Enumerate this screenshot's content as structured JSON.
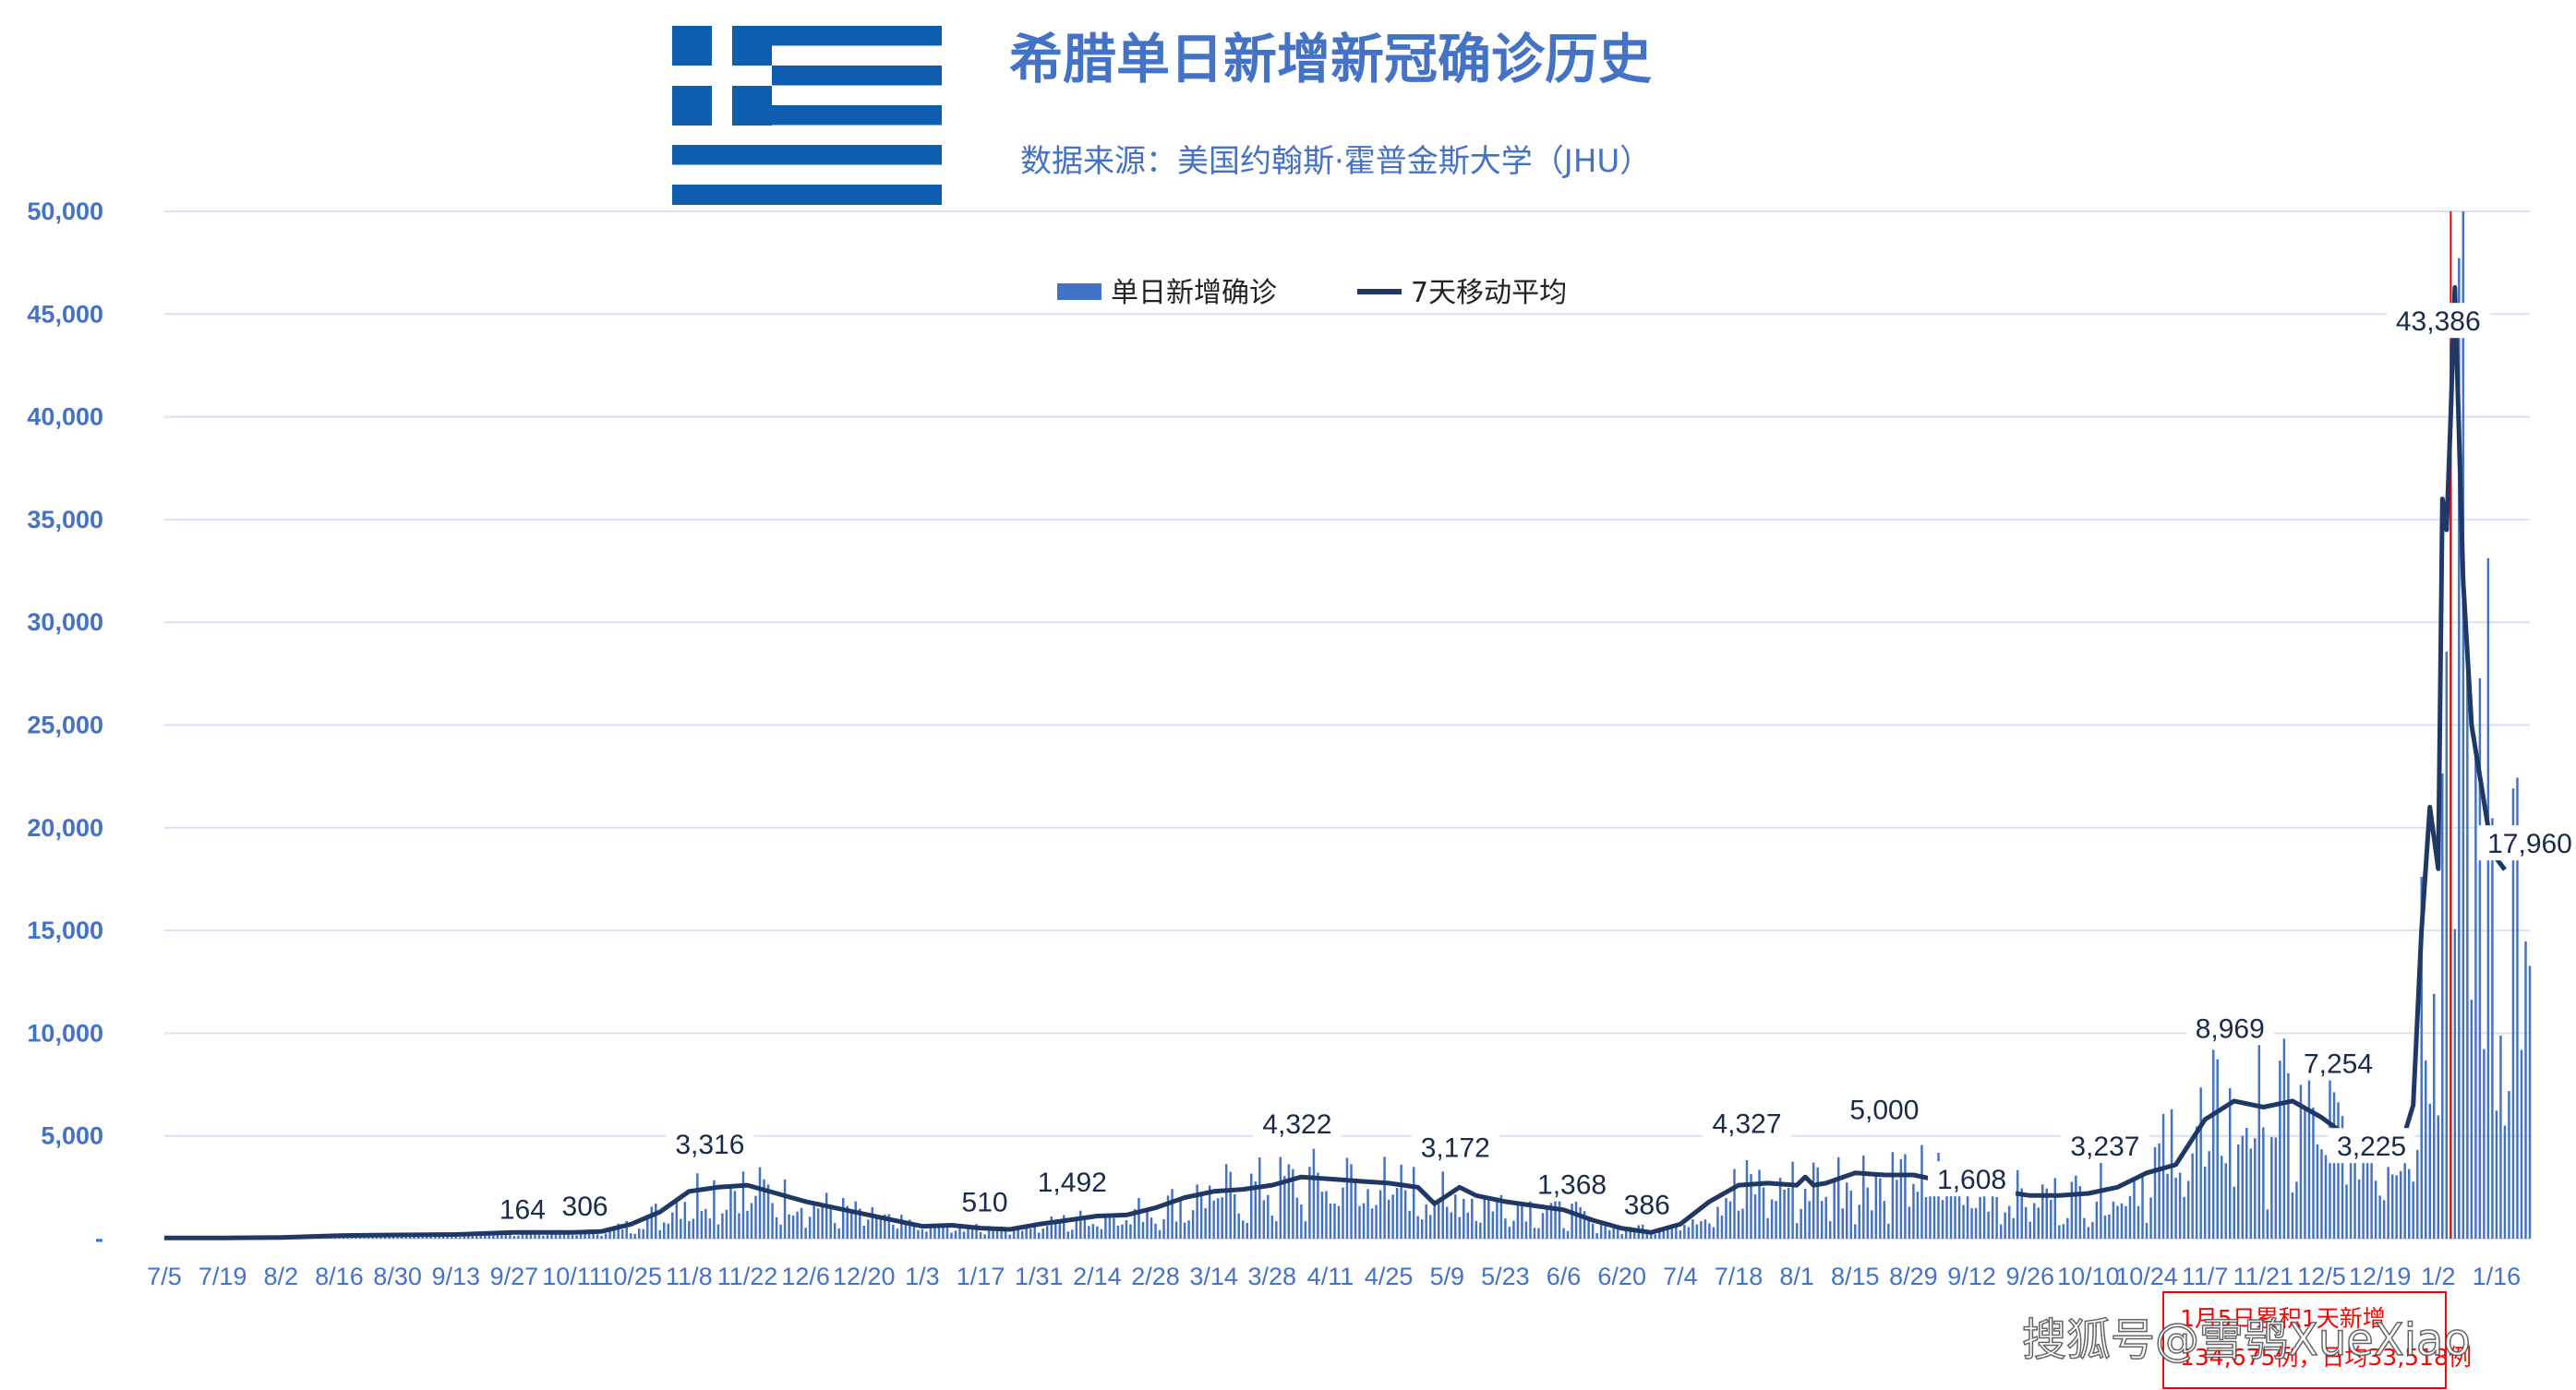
{
  "colors": {
    "bar": "#4472c4",
    "line": "#1f3864",
    "text": "#4472c4",
    "annotation": "#ff0000",
    "grid": "#d9e2f3"
  },
  "chart_data": {
    "type": "bar",
    "title": "希腊单日新增新冠确诊历史",
    "subtitle": "数据来源：美国约翰斯·霍普金斯大学（JHU）",
    "legend": {
      "position": "top-center",
      "bar_series": "单日新增确诊",
      "line_series": "7天移动平均"
    },
    "ylim": [
      0,
      50000
    ],
    "yticks": [
      0,
      5000,
      10000,
      15000,
      20000,
      25000,
      30000,
      35000,
      40000,
      45000,
      50000
    ],
    "ytick_labels": [
      "-",
      "5,000",
      "10,000",
      "15,000",
      "20,000",
      "25,000",
      "30,000",
      "35,000",
      "40,000",
      "45,000",
      "50,000"
    ],
    "x_start": "2020-07-05",
    "x_end": "2022-01-24",
    "xtick_labels": [
      "7/5",
      "7/19",
      "8/2",
      "8/16",
      "8/30",
      "9/13",
      "9/27",
      "10/11",
      "10/25",
      "11/8",
      "11/22",
      "12/6",
      "12/20",
      "1/3",
      "1/17",
      "1/31",
      "2/14",
      "2/28",
      "3/14",
      "3/28",
      "4/11",
      "4/25",
      "5/9",
      "5/23",
      "6/6",
      "6/20",
      "7/4",
      "7/18",
      "8/1",
      "8/15",
      "8/29",
      "9/12",
      "9/26",
      "10/10",
      "10/24",
      "11/7",
      "11/21",
      "12/5",
      "12/19",
      "1/2",
      "1/16"
    ],
    "grid": true,
    "series": [
      {
        "name": "7天移动平均",
        "type": "line",
        "points": [
          [
            "2020-07-05",
            30
          ],
          [
            "2020-07-19",
            30
          ],
          [
            "2020-08-02",
            60
          ],
          [
            "2020-08-16",
            150
          ],
          [
            "2020-08-30",
            180
          ],
          [
            "2020-09-13",
            200
          ],
          [
            "2020-09-27",
            300
          ],
          [
            "2020-10-11",
            306
          ],
          [
            "2020-10-18",
            350
          ],
          [
            "2020-10-25",
            700
          ],
          [
            "2020-11-01",
            1300
          ],
          [
            "2020-11-08",
            2300
          ],
          [
            "2020-11-15",
            2500
          ],
          [
            "2020-11-22",
            2600
          ],
          [
            "2020-12-06",
            1800
          ],
          [
            "2020-12-20",
            1200
          ],
          [
            "2021-01-03",
            600
          ],
          [
            "2021-01-10",
            650
          ],
          [
            "2021-01-17",
            510
          ],
          [
            "2021-01-24",
            450
          ],
          [
            "2021-01-31",
            700
          ],
          [
            "2021-02-07",
            900
          ],
          [
            "2021-02-14",
            1100
          ],
          [
            "2021-02-21",
            1150
          ],
          [
            "2021-02-28",
            1500
          ],
          [
            "2021-03-07",
            2000
          ],
          [
            "2021-03-14",
            2300
          ],
          [
            "2021-03-21",
            2400
          ],
          [
            "2021-03-28",
            2600
          ],
          [
            "2021-04-04",
            3000
          ],
          [
            "2021-04-11",
            2900
          ],
          [
            "2021-04-18",
            2800
          ],
          [
            "2021-04-25",
            2700
          ],
          [
            "2021-05-02",
            2500
          ],
          [
            "2021-05-06",
            1700
          ],
          [
            "2021-05-09",
            2100
          ],
          [
            "2021-05-12",
            2500
          ],
          [
            "2021-05-16",
            2100
          ],
          [
            "2021-05-23",
            1800
          ],
          [
            "2021-05-30",
            1600
          ],
          [
            "2021-06-06",
            1400
          ],
          [
            "2021-06-13",
            900
          ],
          [
            "2021-06-20",
            500
          ],
          [
            "2021-06-27",
            300
          ],
          [
            "2021-07-04",
            700
          ],
          [
            "2021-07-11",
            1800
          ],
          [
            "2021-07-18",
            2600
          ],
          [
            "2021-07-25",
            2700
          ],
          [
            "2021-08-01",
            2600
          ],
          [
            "2021-08-03",
            3000
          ],
          [
            "2021-08-05",
            2600
          ],
          [
            "2021-08-08",
            2700
          ],
          [
            "2021-08-15",
            3200
          ],
          [
            "2021-08-22",
            3100
          ],
          [
            "2021-08-29",
            3100
          ],
          [
            "2021-09-05",
            2800
          ],
          [
            "2021-09-12",
            null
          ],
          [
            "2021-09-19",
            2300
          ],
          [
            "2021-09-26",
            2100
          ],
          [
            "2021-10-03",
            2100
          ],
          [
            "2021-10-10",
            2200
          ],
          [
            "2021-10-17",
            2500
          ],
          [
            "2021-10-24",
            3200
          ],
          [
            "2021-10-31",
            3600
          ],
          [
            "2021-11-07",
            5800
          ],
          [
            "2021-11-14",
            6700
          ],
          [
            "2021-11-21",
            6400
          ],
          [
            "2021-11-28",
            6700
          ],
          [
            "2021-12-05",
            5900
          ],
          [
            "2021-12-09",
            5300
          ],
          [
            "2021-12-12",
            null
          ],
          [
            "2021-12-24",
            4500
          ],
          [
            "2021-12-27",
            6500
          ],
          [
            "2021-12-29",
            15000
          ],
          [
            "2021-12-31",
            21000
          ],
          [
            "2022-01-02",
            18000
          ],
          [
            "2022-01-03",
            36000
          ],
          [
            "2022-01-04",
            34500
          ],
          [
            "2022-01-05",
            40000
          ],
          [
            "2022-01-06",
            46300
          ],
          [
            "2022-01-08",
            32000
          ],
          [
            "2022-01-10",
            25000
          ],
          [
            "2022-01-12",
            22500
          ],
          [
            "2022-01-14",
            20000
          ],
          [
            "2022-01-16",
            18500
          ],
          [
            "2022-01-18",
            17960
          ]
        ]
      },
      {
        "name": "单日新增确诊",
        "type": "bar",
        "segments": [
          [
            "2020-07-05",
            30,
            15
          ],
          [
            "2020-07-19",
            30,
            15
          ],
          [
            "2020-08-02",
            60,
            25
          ],
          [
            "2020-08-16",
            150,
            30
          ],
          [
            "2020-08-30",
            180,
            40
          ],
          [
            "2020-09-13",
            200,
            40
          ],
          [
            "2020-09-27",
            300,
            40
          ],
          [
            "2020-10-11",
            306,
            40
          ],
          [
            "2020-10-18",
            350,
            40
          ],
          [
            "2020-10-25",
            700,
            50
          ],
          [
            "2020-11-01",
            1300,
            60
          ],
          [
            "2020-11-08",
            2300,
            60
          ],
          [
            "2020-11-15",
            2500,
            60
          ],
          [
            "2020-11-22",
            2600,
            50
          ],
          [
            "2020-12-06",
            1800,
            50
          ],
          [
            "2020-12-20",
            1200,
            50
          ],
          [
            "2021-01-03",
            600,
            40
          ],
          [
            "2021-01-17",
            510,
            40
          ],
          [
            "2021-01-31",
            700,
            45
          ],
          [
            "2021-02-14",
            1100,
            50
          ],
          [
            "2021-02-28",
            1500,
            55
          ],
          [
            "2021-03-14",
            2300,
            60
          ],
          [
            "2021-03-28",
            2600,
            60
          ],
          [
            "2021-04-11",
            2900,
            60
          ],
          [
            "2021-04-25",
            2700,
            55
          ],
          [
            "2021-05-09",
            2100,
            55
          ],
          [
            "2021-05-23",
            1800,
            50
          ],
          [
            "2021-06-06",
            1400,
            50
          ],
          [
            "2021-06-20",
            500,
            45
          ],
          [
            "2021-07-04",
            700,
            50
          ],
          [
            "2021-07-18",
            2600,
            60
          ],
          [
            "2021-08-01",
            2600,
            60
          ],
          [
            "2021-08-15",
            3200,
            60
          ],
          [
            "2021-08-29",
            3100,
            60
          ],
          [
            "2021-09-12",
            2500,
            55
          ],
          [
            "2021-09-26",
            2100,
            55
          ],
          [
            "2021-10-10",
            2200,
            55
          ],
          [
            "2021-10-24",
            3200,
            60
          ],
          [
            "2021-11-07",
            5800,
            60
          ],
          [
            "2021-11-21",
            6400,
            60
          ],
          [
            "2021-12-05",
            5900,
            55
          ],
          [
            "2021-12-19",
            4500,
            55
          ],
          [
            "2021-12-27",
            6500,
            70
          ],
          [
            "2021-12-31",
            21000,
            80
          ],
          [
            "2022-01-03",
            36000,
            80
          ],
          [
            "2022-01-06",
            46300,
            80
          ],
          [
            "2022-01-10",
            25000,
            80
          ],
          [
            "2022-01-14",
            20000,
            80
          ],
          [
            "2022-01-18",
            17960,
            80
          ],
          [
            "2022-01-24",
            18000,
            80
          ]
        ]
      }
    ],
    "annotations": [
      {
        "label": "164",
        "date": "2020-09-29",
        "value": 164
      },
      {
        "label": "306",
        "date": "2020-10-14",
        "value": 306
      },
      {
        "label": "3,316",
        "date": "2020-11-13",
        "value": 3316
      },
      {
        "label": "510",
        "date": "2021-01-18",
        "value": 510
      },
      {
        "label": "1,492",
        "date": "2021-02-08",
        "value": 1492
      },
      {
        "label": "4,322",
        "date": "2021-04-03",
        "value": 4322
      },
      {
        "label": "3,172",
        "date": "2021-05-11",
        "value": 3172
      },
      {
        "label": "1,368",
        "date": "2021-06-08",
        "value": 1368
      },
      {
        "label": "386",
        "date": "2021-06-26",
        "value": 386
      },
      {
        "label": "4,327",
        "date": "2021-07-20",
        "value": 4327
      },
      {
        "label": "5,000",
        "date": "2021-08-22",
        "value": 5000
      },
      {
        "label": "1,608",
        "date": "2021-09-12",
        "value": 1608
      },
      {
        "label": "3,237",
        "date": "2021-10-14",
        "value": 3237
      },
      {
        "label": "8,969",
        "date": "2021-11-13",
        "value": 8969
      },
      {
        "label": "7,254",
        "date": "2021-12-09",
        "value": 7254
      },
      {
        "label": "3,225",
        "date": "2021-12-17",
        "value": 3225
      },
      {
        "label": "43,386",
        "date": "2022-01-02",
        "value": 43386
      },
      {
        "label": "17,960",
        "date": "2022-01-24",
        "value": 17960
      }
    ],
    "marker_line_date": "2022-01-05",
    "note": [
      "1月5日累积1天新增",
      "134,675例，日均33,518例"
    ]
  },
  "watermark": "搜狐号@雪鸮XueXiao",
  "flag": "greek-flag"
}
